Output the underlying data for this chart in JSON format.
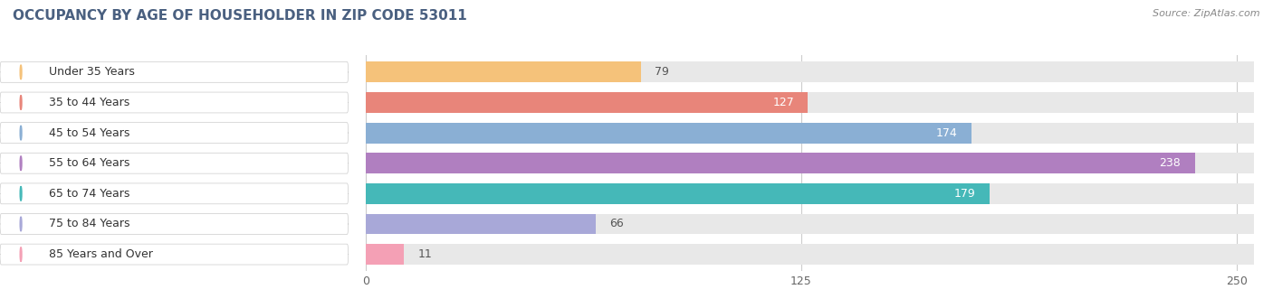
{
  "title": "OCCUPANCY BY AGE OF HOUSEHOLDER IN ZIP CODE 53011",
  "source": "Source: ZipAtlas.com",
  "categories": [
    "Under 35 Years",
    "35 to 44 Years",
    "45 to 54 Years",
    "55 to 64 Years",
    "65 to 74 Years",
    "75 to 84 Years",
    "85 Years and Over"
  ],
  "values": [
    79,
    127,
    174,
    238,
    179,
    66,
    11
  ],
  "bar_colors": [
    "#f5c27a",
    "#e8857a",
    "#8aafd4",
    "#b07fc0",
    "#45b8b8",
    "#a8a8d8",
    "#f4a0b5"
  ],
  "bar_bg_color": "#e8e8e8",
  "xlim_left": -105,
  "xlim_right": 255,
  "xticks": [
    0,
    125,
    250
  ],
  "title_fontsize": 11,
  "source_fontsize": 8,
  "label_fontsize": 9,
  "value_fontsize": 9,
  "fig_bg_color": "#ffffff",
  "bar_bg_outer_color": "#f0f0f0",
  "label_bg_color": "#ffffff",
  "grid_color": "#cccccc"
}
